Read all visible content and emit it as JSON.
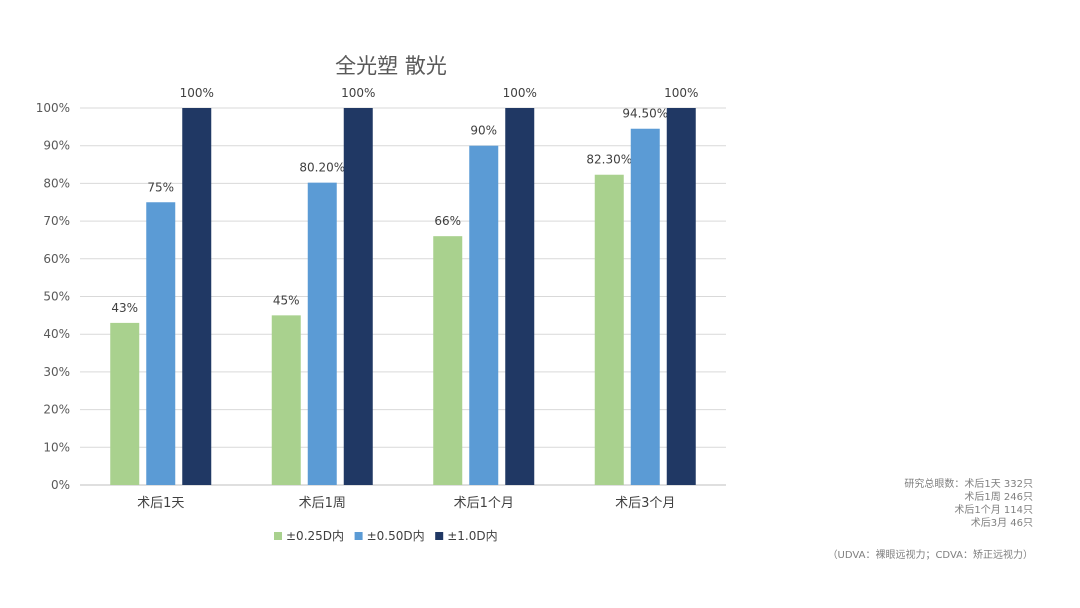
{
  "chart_data": {
    "type": "bar",
    "title": "全光塑 散光",
    "categories": [
      "术后1天",
      "术后1周",
      "术后1个月",
      "术后3个月"
    ],
    "series": [
      {
        "name": "±0.25D内",
        "color": "#a9d18e",
        "values": [
          43,
          45,
          66,
          82.3
        ],
        "labels": [
          "43%",
          "45%",
          "66%",
          "82.30%"
        ]
      },
      {
        "name": "±0.50D内",
        "color": "#5b9bd5",
        "values": [
          75,
          80.2,
          90,
          94.5
        ],
        "labels": [
          "75%",
          "80.20%",
          "90%",
          "94.50%"
        ]
      },
      {
        "name": "±1.0D内",
        "color": "#203864",
        "values": [
          100,
          100,
          100,
          100
        ],
        "labels": [
          "100%",
          "100%",
          "100%",
          "100%"
        ]
      }
    ],
    "yticks": [
      "0%",
      "10%",
      "20%",
      "30%",
      "40%",
      "50%",
      "60%",
      "70%",
      "80%",
      "90%",
      "100%"
    ],
    "ylim": [
      0,
      100
    ],
    "xlabel": "",
    "ylabel": "",
    "grid": true,
    "legend": "bottom"
  },
  "notes": {
    "line1": "研究总眼数：术后1天 332只",
    "line2": "术后1周 246只",
    "line3": "术后1个月 114只",
    "line4": "术后3月 46只",
    "footnote": "（UDVA：裸眼远视力；CDVA：矫正远视力）"
  }
}
